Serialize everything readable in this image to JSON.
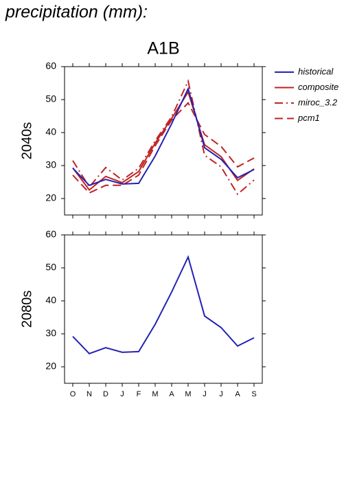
{
  "title": "precipitation (mm):",
  "chart_data": [
    {
      "type": "line",
      "title": "A1B",
      "ylabel": "2040s",
      "categories": [
        null,
        null,
        null,
        null,
        null,
        null,
        null,
        null,
        null,
        null,
        null,
        null
      ],
      "ylim": [
        15,
        60
      ],
      "yticks": [
        20,
        30,
        40,
        50,
        60
      ],
      "legend": "right",
      "series": [
        {
          "name": "historical",
          "color": "#2222b4",
          "dash": "solid",
          "values": [
            29.2,
            24,
            25.8,
            24.4,
            24.6,
            32.9,
            42.7,
            53.3,
            35.4,
            31.9,
            26.3,
            28.8
          ]
        },
        {
          "name": "composite",
          "color": "#c02222",
          "dash": "solid",
          "values": [
            29.3,
            22.6,
            26.7,
            24.8,
            28.2,
            36.8,
            44.3,
            52.3,
            36.3,
            32.7,
            25.5,
            29
          ]
        },
        {
          "name": "miroc_3.2",
          "color": "#c02222",
          "dash": "dashdot",
          "values": [
            31.5,
            23.5,
            29.4,
            25.6,
            29.2,
            37.5,
            44.8,
            55.6,
            33.1,
            29.6,
            21.3,
            25.6
          ]
        },
        {
          "name": "pcm1",
          "color": "#c02222",
          "dash": "dashed",
          "values": [
            27.1,
            21.7,
            24,
            24,
            27.1,
            36,
            43.8,
            49,
            39.4,
            35.8,
            29.6,
            32.3
          ]
        }
      ]
    },
    {
      "type": "line",
      "ylabel": "2080s",
      "categories": [
        "O",
        "N",
        "D",
        "J",
        "F",
        "M",
        "A",
        "M",
        "J",
        "J",
        "A",
        "S"
      ],
      "ylim": [
        15,
        60
      ],
      "yticks": [
        20,
        30,
        40,
        50,
        60
      ],
      "series": [
        {
          "color": "#2222b4",
          "dash": "solid",
          "values": [
            29.2,
            24,
            25.8,
            24.4,
            24.6,
            32.9,
            42.7,
            53.3,
            35.4,
            31.9,
            26.3,
            28.8
          ]
        }
      ]
    }
  ]
}
